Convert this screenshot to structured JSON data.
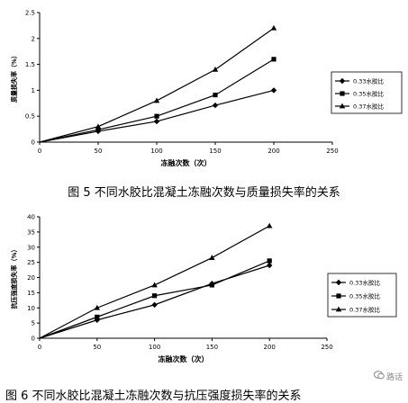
{
  "chart_data": [
    {
      "type": "line",
      "title": "",
      "xlabel": "冻融次数（次）",
      "ylabel": "质量损失率（%）",
      "x": [
        0,
        50,
        100,
        150,
        200
      ],
      "xlim": [
        0,
        250
      ],
      "xticks": [
        "0",
        "50",
        "100",
        "150",
        "200",
        "250"
      ],
      "ylim": [
        0,
        2.5
      ],
      "yticks": [
        "0",
        "0.5",
        "1",
        "1.5",
        "2",
        "2.5"
      ],
      "grid": false,
      "legend_position": "right",
      "series": [
        {
          "name": "0.33水胶比",
          "marker": "diamond",
          "values": [
            0,
            0.21,
            0.4,
            0.71,
            1.0
          ]
        },
        {
          "name": "0.35水胶比",
          "marker": "square",
          "values": [
            0,
            0.24,
            0.5,
            0.91,
            1.6
          ]
        },
        {
          "name": "0.37水胶比",
          "marker": "triangle",
          "values": [
            0,
            0.3,
            0.8,
            1.4,
            2.2
          ]
        }
      ],
      "caption": "图 5 不同水胶比混凝土冻融次数与质量损失率的关系"
    },
    {
      "type": "line",
      "title": "",
      "xlabel": "冻融次数（次）",
      "ylabel": "抗压强度损失率（%）",
      "x": [
        0,
        50,
        100,
        150,
        200
      ],
      "xlim": [
        0,
        250
      ],
      "xticks": [
        "0",
        "50",
        "100",
        "150",
        "200",
        "250"
      ],
      "ylim": [
        0,
        40
      ],
      "yticks": [
        "0",
        "5",
        "10",
        "15",
        "20",
        "25",
        "30",
        "35",
        "40"
      ],
      "grid": false,
      "legend_position": "right",
      "series": [
        {
          "name": "0.33水胶比",
          "marker": "diamond",
          "values": [
            0,
            6.0,
            11.0,
            18.0,
            24.0
          ]
        },
        {
          "name": "0.35水胶比",
          "marker": "square",
          "values": [
            0,
            7.0,
            14.0,
            17.5,
            25.5
          ]
        },
        {
          "name": "0.37水胶比",
          "marker": "triangle",
          "values": [
            0,
            10.0,
            17.5,
            26.5,
            37.0
          ]
        }
      ],
      "caption": "图 6 不同水胶比混凝土冻融次数与抗压强度损失率的关系"
    }
  ],
  "watermark": {
    "text": "路话",
    "icon": "wechat-icon"
  }
}
